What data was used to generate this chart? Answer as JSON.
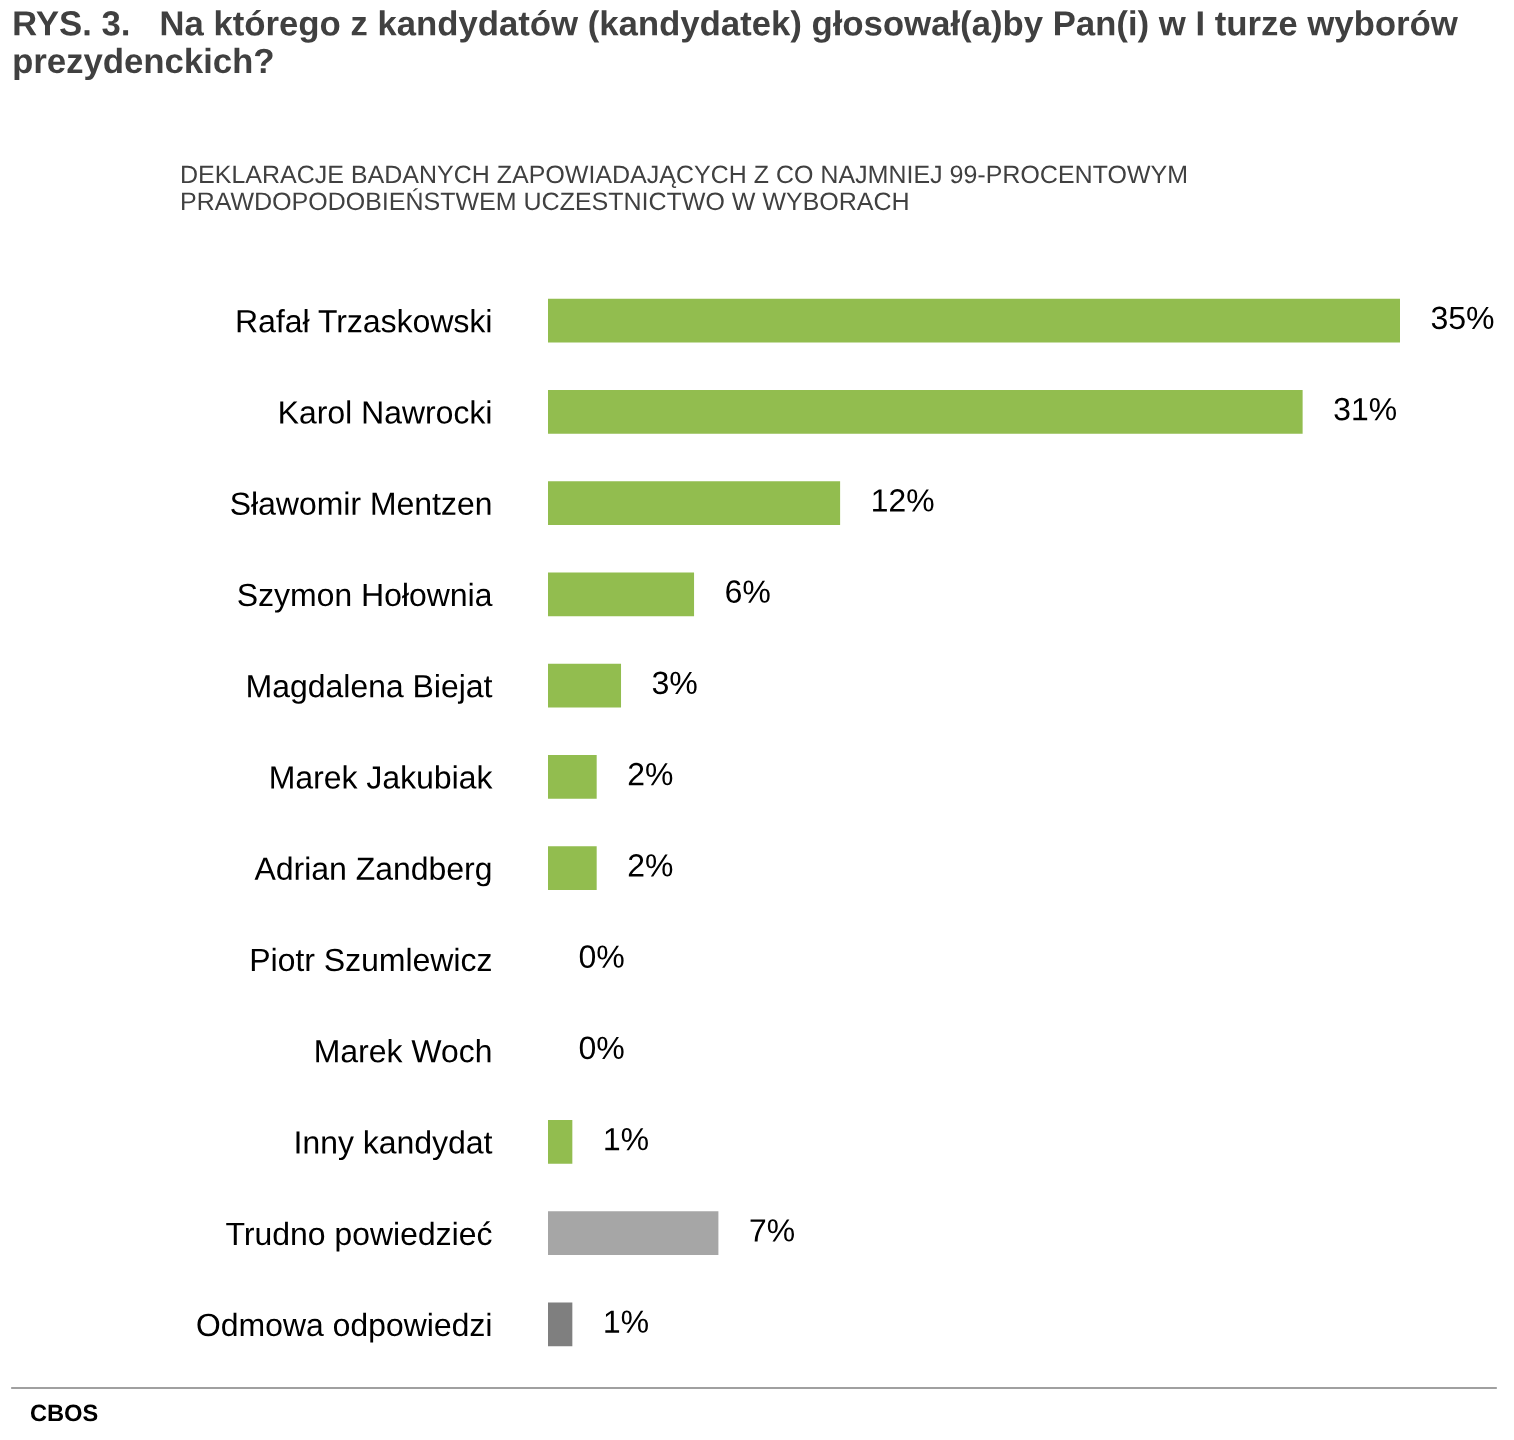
{
  "chart_data": {
    "type": "bar",
    "orientation": "horizontal",
    "title": "RYS. 3.   Na którego z kandydatów (kandydatek) głosował(a)by Pan(i) w I turze wyborów prezydenckich?",
    "subtitle": "DEKLARACJE BADANYCH ZAPOWIADAJĄCYCH Z CO NAJMNIEJ 99-PROCENTOWYM PRAWDOPODOBIEŃSTWEM UCZESTNICTWO W WYBORACH",
    "categories": [
      "Rafał Trzaskowski",
      "Karol Nawrocki",
      "Sławomir Mentzen",
      "Szymon Hołownia",
      "Magdalena Biejat",
      "Marek Jakubiak",
      "Adrian Zandberg",
      "Piotr Szumlewicz",
      "Marek Woch",
      "Inny kandydat",
      "Trudno powiedzieć",
      "Odmowa odpowiedzi"
    ],
    "values": [
      35,
      31,
      12,
      6,
      3,
      2,
      2,
      0,
      0,
      1,
      7,
      1
    ],
    "colors": [
      "#92bd4f",
      "#92bd4f",
      "#92bd4f",
      "#92bd4f",
      "#92bd4f",
      "#92bd4f",
      "#92bd4f",
      "#92bd4f",
      "#92bd4f",
      "#92bd4f",
      "#a6a6a6",
      "#7f7f7f"
    ],
    "value_labels": [
      "35%",
      "31%",
      "12%",
      "6%",
      "3%",
      "2%",
      "2%",
      "0%",
      "0%",
      "1%",
      "7%",
      "1%"
    ],
    "xlim": [
      0,
      35
    ],
    "tick_labels": "y",
    "grid": false,
    "annotations": [
      "CBOS"
    ]
  }
}
